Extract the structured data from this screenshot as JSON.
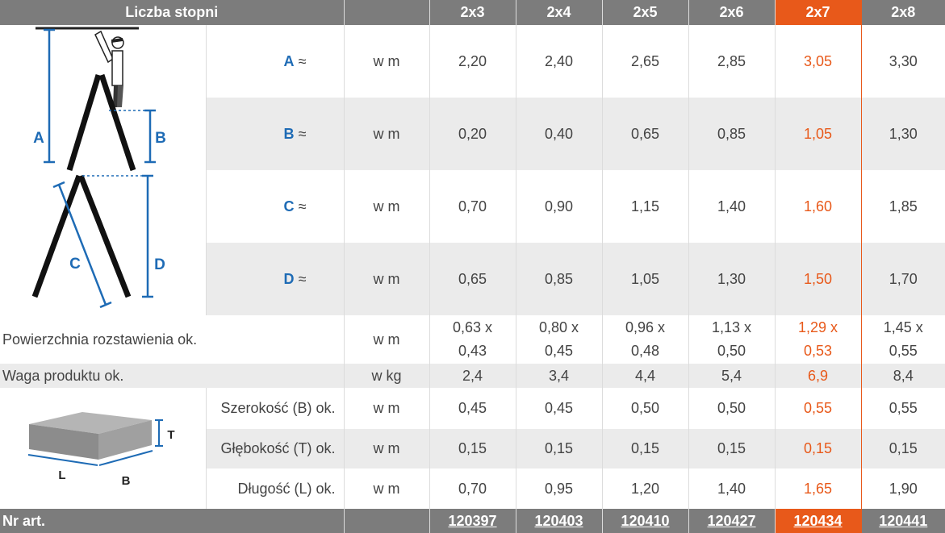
{
  "header": {
    "title": "Liczba stopni",
    "columns": [
      "2x3",
      "2x4",
      "2x5",
      "2x6",
      "2x7",
      "2x8"
    ],
    "highlight_index": 4,
    "highlight_color": "#e8591a",
    "header_color": "#7c7c7c",
    "letter_color": "#1e6bb5"
  },
  "rows": {
    "A": {
      "letter": "A",
      "approx": "≈",
      "unit": "w m",
      "values": [
        "2,20",
        "2,40",
        "2,65",
        "2,85",
        "3,05",
        "3,30"
      ]
    },
    "B": {
      "letter": "B",
      "approx": "≈",
      "unit": "w m",
      "values": [
        "0,20",
        "0,40",
        "0,65",
        "0,85",
        "1,05",
        "1,30"
      ]
    },
    "C": {
      "letter": "C",
      "approx": "≈",
      "unit": "w m",
      "values": [
        "0,70",
        "0,90",
        "1,15",
        "1,40",
        "1,60",
        "1,85"
      ]
    },
    "D": {
      "letter": "D",
      "approx": "≈",
      "unit": "w m",
      "values": [
        "0,65",
        "0,85",
        "1,05",
        "1,30",
        "1,50",
        "1,70"
      ]
    },
    "powierzchnia": {
      "label": "Powierzchnia rozstawienia ok.",
      "unit": "w m",
      "values_top": [
        "0,63 x",
        "0,80 x",
        "0,96 x",
        "1,13 x",
        "1,29 x",
        "1,45 x"
      ],
      "values_bottom": [
        "0,43",
        "0,45",
        "0,48",
        "0,50",
        "0,53",
        "0,55"
      ]
    },
    "waga": {
      "label": "Waga produktu ok.",
      "unit": "w kg",
      "values": [
        "2,4",
        "3,4",
        "4,4",
        "5,4",
        "6,9",
        "8,4"
      ]
    },
    "szerokosc": {
      "label": "Szerokość (B) ok.",
      "unit": "w m",
      "values": [
        "0,45",
        "0,45",
        "0,50",
        "0,50",
        "0,55",
        "0,55"
      ]
    },
    "glebokosc": {
      "label": "Głębokość (T) ok.",
      "unit": "w m",
      "values": [
        "0,15",
        "0,15",
        "0,15",
        "0,15",
        "0,15",
        "0,15"
      ]
    },
    "dlugosc": {
      "label": "Długość (L) ok.",
      "unit": "w m",
      "values": [
        "0,70",
        "0,95",
        "1,20",
        "1,40",
        "1,65",
        "1,90"
      ]
    }
  },
  "footer": {
    "label": "Nr art.",
    "articles": [
      "120397",
      "120403",
      "120410",
      "120427",
      "120434",
      "120441"
    ]
  },
  "diagram": {
    "labels": {
      "A": "A",
      "B": "B",
      "C": "C",
      "D": "D"
    },
    "box_labels": {
      "T": "T",
      "L": "L",
      "B": "B"
    }
  }
}
